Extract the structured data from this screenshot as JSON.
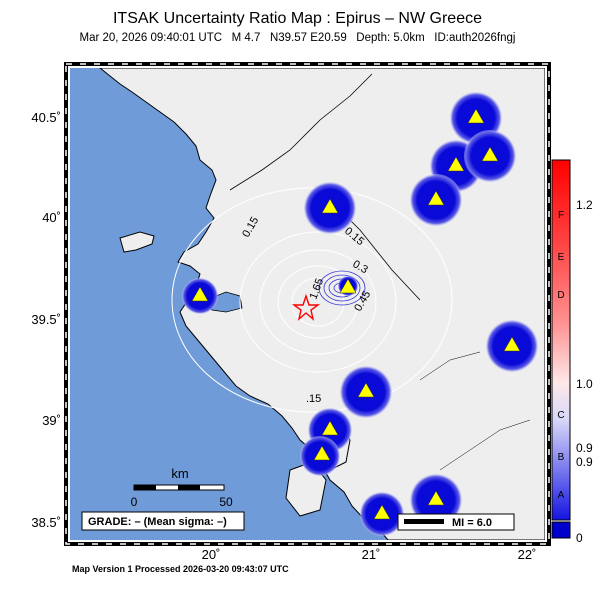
{
  "header": {
    "title": "ITSAK Uncertainty Ratio Map : Epirus – NW Greece",
    "subtitle": "Mar 20, 2026 09:40:01 UTC   M 4.7   N39.57 E20.59   Depth: 5.0km   ID:auth2026fngj"
  },
  "map": {
    "lon_ticks": [
      "20˚",
      "21˚",
      "22˚"
    ],
    "lat_ticks": [
      "40.5˚",
      "40˚",
      "39.5˚",
      "39˚",
      "38.5˚"
    ],
    "contour_labels": [
      "0.15",
      "0.15",
      "0.3",
      "1.65",
      "0.45",
      ".15"
    ],
    "scale_bar": {
      "unit": "km",
      "start": "0",
      "end": "50"
    },
    "grade_box": "GRADE: – (Mean sigma: –)",
    "mi_legend": "MI = 6.0",
    "colors": {
      "sea": "#6f9bd8",
      "land": "#eeeeee",
      "station": "#ffff00",
      "blob": "#0a0ad8"
    }
  },
  "colorbar": {
    "letters": [
      "F",
      "E",
      "D",
      "C",
      "B",
      "A"
    ],
    "values": [
      "1.2",
      "1.0",
      "0.9",
      "0.9",
      "0"
    ]
  },
  "footer": "Map Version 1 Processed 2026-03-20 09:43:07 UTC"
}
